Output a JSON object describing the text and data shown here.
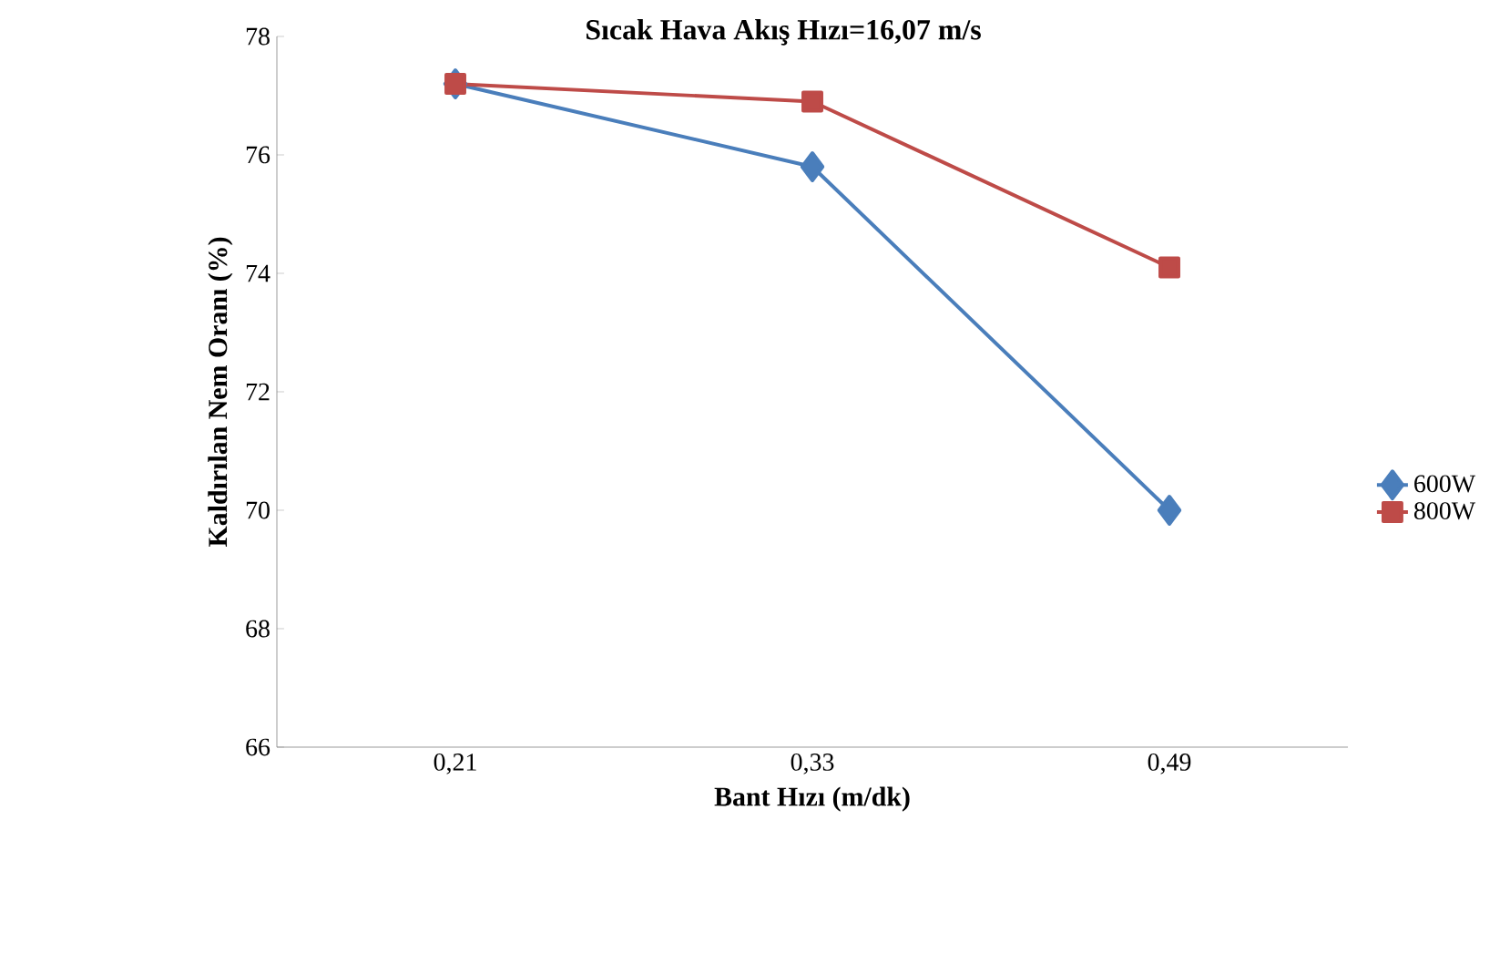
{
  "chart_data": {
    "type": "line",
    "title": "Sıcak Hava Akış Hızı=16,07 m/s",
    "xlabel": "Bant Hızı (m/dk)",
    "ylabel": "Kaldırılan Nem Oranı (%)",
    "categories": [
      "0,21",
      "0,33",
      "0,49"
    ],
    "series": [
      {
        "name": "600W",
        "color": "#4a7ebb",
        "marker": "diamond",
        "values": [
          77.2,
          75.8,
          70.0
        ]
      },
      {
        "name": "800W",
        "color": "#be4b48",
        "marker": "square",
        "values": [
          77.2,
          76.9,
          74.1
        ]
      }
    ],
    "ylim": [
      66,
      78
    ],
    "yticks": [
      66,
      68,
      70,
      72,
      74,
      76,
      78
    ],
    "grid": false,
    "legend": "right"
  }
}
